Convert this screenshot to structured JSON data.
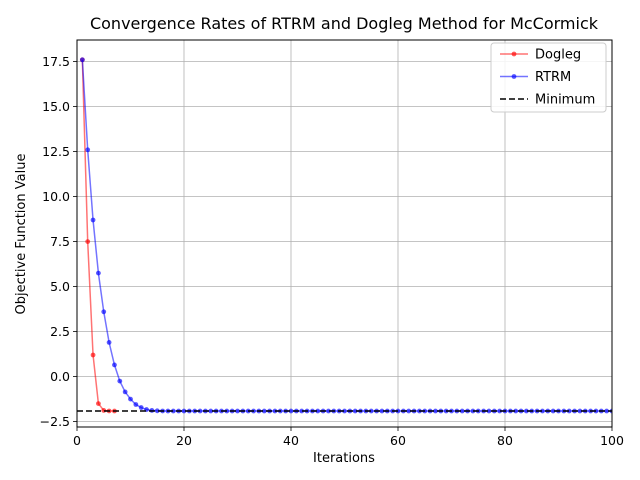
{
  "chart_data": {
    "type": "line",
    "title": "Convergence Rates of RTRM and Dogleg Method for McCormick",
    "xlabel": "Iterations",
    "ylabel": "Objective Function Value",
    "xlim": [
      0,
      100
    ],
    "ylim": [
      -2.8,
      18.7
    ],
    "xticks": [
      0,
      20,
      40,
      60,
      80,
      100
    ],
    "yticks": [
      -2.5,
      0.0,
      2.5,
      5.0,
      7.5,
      10.0,
      12.5,
      15.0,
      17.5
    ],
    "xtick_labels": [
      "0",
      "20",
      "40",
      "60",
      "80",
      "100"
    ],
    "ytick_labels": [
      "−2.5",
      "0.0",
      "2.5",
      "5.0",
      "7.5",
      "10.0",
      "12.5",
      "15.0",
      "17.5"
    ],
    "grid": true,
    "legend_position": "top-right",
    "series": [
      {
        "name": "Dogleg",
        "color": "#ff0000",
        "x": [
          1,
          2,
          3,
          4,
          5,
          6,
          7
        ],
        "y": [
          17.6,
          7.5,
          1.2,
          -1.5,
          -1.88,
          -1.91,
          -1.913
        ]
      },
      {
        "name": "RTRM",
        "color": "#0000ff",
        "x": [
          1,
          2,
          3,
          4,
          5,
          6,
          7,
          8,
          9,
          10,
          11,
          12,
          13,
          14,
          15,
          16,
          17,
          18,
          19,
          20,
          21,
          22,
          23,
          24,
          25,
          26,
          27,
          28,
          29,
          30,
          31,
          32,
          33,
          34,
          35,
          36,
          37,
          38,
          39,
          40,
          41,
          42,
          43,
          44,
          45,
          46,
          47,
          48,
          49,
          50,
          51,
          52,
          53,
          54,
          55,
          56,
          57,
          58,
          59,
          60,
          61,
          62,
          63,
          64,
          65,
          66,
          67,
          68,
          69,
          70,
          71,
          72,
          73,
          74,
          75,
          76,
          77,
          78,
          79,
          80,
          81,
          82,
          83,
          84,
          85,
          86,
          87,
          88,
          89,
          90,
          91,
          92,
          93,
          94,
          95,
          96,
          97,
          98,
          99,
          100
        ],
        "y": [
          17.6,
          12.6,
          8.7,
          5.75,
          3.6,
          1.9,
          0.65,
          -0.25,
          -0.85,
          -1.25,
          -1.55,
          -1.72,
          -1.83,
          -1.88,
          -1.9,
          -1.91,
          -1.912,
          -1.913,
          -1.913,
          -1.913,
          -1.913,
          -1.913,
          -1.913,
          -1.913,
          -1.913,
          -1.913,
          -1.913,
          -1.913,
          -1.913,
          -1.913,
          -1.913,
          -1.913,
          -1.913,
          -1.913,
          -1.913,
          -1.913,
          -1.913,
          -1.913,
          -1.913,
          -1.913,
          -1.913,
          -1.913,
          -1.913,
          -1.913,
          -1.913,
          -1.913,
          -1.913,
          -1.913,
          -1.913,
          -1.913,
          -1.913,
          -1.913,
          -1.913,
          -1.913,
          -1.913,
          -1.913,
          -1.913,
          -1.913,
          -1.913,
          -1.913,
          -1.913,
          -1.913,
          -1.913,
          -1.913,
          -1.913,
          -1.913,
          -1.913,
          -1.913,
          -1.913,
          -1.913,
          -1.913,
          -1.913,
          -1.913,
          -1.913,
          -1.913,
          -1.913,
          -1.913,
          -1.913,
          -1.913,
          -1.913,
          -1.913,
          -1.913,
          -1.913,
          -1.913,
          -1.913,
          -1.913,
          -1.913,
          -1.913,
          -1.913,
          -1.913,
          -1.913,
          -1.913,
          -1.913,
          -1.913,
          -1.913,
          -1.913,
          -1.913,
          -1.913,
          -1.913,
          -1.913
        ]
      }
    ],
    "reference_line": {
      "name": "Minimum",
      "y": -1.913,
      "color": "#000000",
      "style": "dashed"
    }
  }
}
